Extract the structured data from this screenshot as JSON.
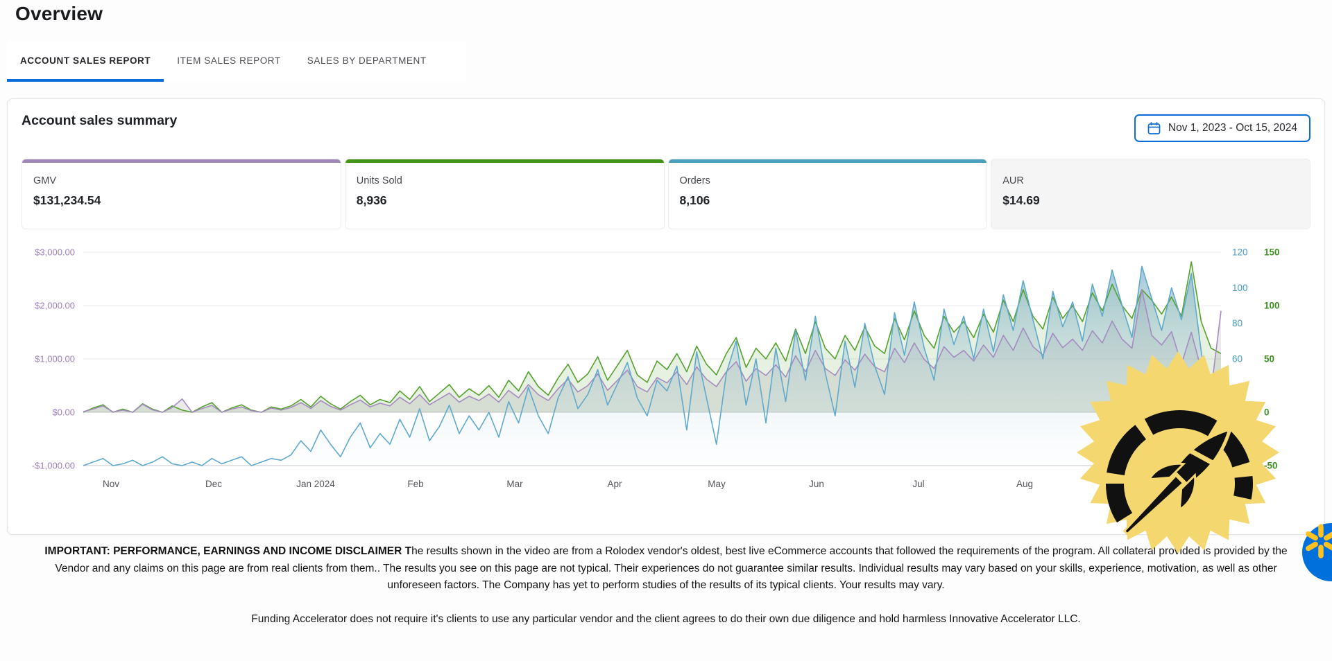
{
  "page": {
    "title": "Overview"
  },
  "tabs": [
    {
      "label": "ACCOUNT SALES REPORT",
      "active": true
    },
    {
      "label": "ITEM SALES REPORT",
      "active": false
    },
    {
      "label": "SALES BY DEPARTMENT",
      "active": false
    }
  ],
  "card": {
    "title": "Account sales summary",
    "date_range": "Nov 1, 2023 - Oct 15, 2024"
  },
  "metrics": [
    {
      "label": "GMV",
      "value": "$131,234.54",
      "accent_color": "#a287b9",
      "selected": true
    },
    {
      "label": "Units Sold",
      "value": "8,936",
      "accent_color": "#449417",
      "selected": true
    },
    {
      "label": "Orders",
      "value": "8,106",
      "accent_color": "#4aa0bd",
      "selected": true
    },
    {
      "label": "AUR",
      "value": "$14.69",
      "accent_color": null,
      "selected": false
    }
  ],
  "chart_data": {
    "type": "area",
    "title": "Account sales summary",
    "grid": true,
    "x_tick_labels": [
      "Nov",
      "Dec",
      "Jan 2024",
      "Feb",
      "Mar",
      "Apr",
      "May",
      "Jun",
      "Jul",
      "Aug"
    ],
    "left_axis": {
      "name": "GMV ($)",
      "label_color": "#9d7fba",
      "ticks": [
        "$3,000.00",
        "$2,000.00",
        "$1,000.00",
        "$0.00",
        "-$1,000.00"
      ],
      "tick_values": [
        3000,
        2000,
        1000,
        0,
        -1000
      ],
      "min": -1000,
      "max": 3000
    },
    "right_axis_orders": {
      "name": "Orders",
      "label_color": "#459cc4",
      "ticks": [
        120,
        100,
        80,
        60
      ],
      "min": 0,
      "max": 120
    },
    "right_axis_units": {
      "name": "Units",
      "label_color": "#3f8f22",
      "ticks": [
        150,
        100,
        50,
        0,
        -50
      ],
      "min": -50,
      "max": 150
    },
    "series": [
      {
        "name": "GMV",
        "axis": "left",
        "color": "#a58bc0",
        "fill": "rgba(150,150,155,0.20)",
        "values": [
          10,
          60,
          120,
          5,
          40,
          0,
          150,
          45,
          0,
          90,
          250,
          0,
          70,
          130,
          0,
          60,
          100,
          30,
          0,
          80,
          40,
          90,
          180,
          70,
          220,
          110,
          40,
          140,
          230,
          100,
          170,
          120,
          280,
          160,
          330,
          140,
          250,
          360,
          190,
          300,
          220,
          340,
          190,
          410,
          270,
          520,
          330,
          220,
          440,
          620,
          380,
          500,
          720,
          410,
          600,
          790,
          480,
          380,
          650,
          550,
          760,
          520,
          850,
          620,
          480,
          760,
          950,
          580,
          820,
          690,
          890,
          660,
          1060,
          760,
          1160,
          820,
          690,
          980,
          790,
          1090,
          850,
          760,
          1200,
          930,
          1300,
          990,
          820,
          1230,
          1030,
          1160,
          960,
          1260,
          1030,
          1440,
          1160,
          1580,
          1230,
          1070,
          1480,
          1210,
          1370,
          1160,
          1530,
          1300,
          1710,
          1370,
          1200,
          2300,
          1440,
          1260,
          1510,
          900,
          1500,
          800,
          400,
          1900
        ]
      },
      {
        "name": "Units Sold",
        "axis": "units",
        "color": "#55a12f",
        "fill": "rgba(120,175,95,0.18)",
        "values": [
          0,
          4,
          7,
          0,
          3,
          0,
          8,
          3,
          0,
          6,
          2,
          0,
          5,
          9,
          0,
          4,
          7,
          2,
          0,
          5,
          3,
          6,
          12,
          5,
          15,
          8,
          3,
          10,
          16,
          7,
          12,
          9,
          20,
          12,
          24,
          10,
          18,
          26,
          14,
          22,
          16,
          25,
          14,
          30,
          20,
          38,
          24,
          16,
          32,
          45,
          28,
          36,
          52,
          30,
          44,
          58,
          35,
          28,
          48,
          40,
          55,
          38,
          62,
          45,
          35,
          55,
          70,
          42,
          60,
          50,
          65,
          48,
          78,
          55,
          85,
          60,
          50,
          72,
          58,
          80,
          62,
          55,
          88,
          68,
          95,
          72,
          60,
          90,
          75,
          85,
          70,
          92,
          75,
          105,
          85,
          115,
          90,
          78,
          108,
          88,
          100,
          85,
          112,
          95,
          120,
          100,
          88,
          115,
          105,
          92,
          108,
          90,
          141,
          85,
          60,
          55
        ]
      },
      {
        "name": "Orders",
        "axis": "orders",
        "color": "#5fa9cd",
        "fill": "gradient-blue",
        "values": [
          0,
          2,
          4,
          0,
          1,
          3,
          0,
          2,
          5,
          1,
          0,
          2,
          0,
          4,
          1,
          3,
          5,
          0,
          2,
          4,
          3,
          6,
          14,
          8,
          20,
          12,
          5,
          16,
          24,
          10,
          18,
          12,
          26,
          16,
          32,
          14,
          22,
          34,
          18,
          28,
          20,
          30,
          16,
          36,
          24,
          44,
          28,
          18,
          38,
          50,
          32,
          40,
          54,
          34,
          46,
          58,
          38,
          28,
          48,
          42,
          56,
          20,
          64,
          38,
          12,
          52,
          70,
          34,
          60,
          24,
          66,
          36,
          76,
          48,
          84,
          52,
          28,
          70,
          44,
          80,
          56,
          40,
          86,
          62,
          92,
          66,
          48,
          88,
          68,
          84,
          60,
          88,
          64,
          96,
          76,
          104,
          82,
          60,
          98,
          78,
          92,
          70,
          102,
          84,
          110,
          90,
          72,
          112,
          94,
          76,
          100,
          82,
          108,
          64,
          30,
          18
        ]
      }
    ]
  },
  "badge": {
    "name": "rocket-gauge-seal",
    "color": "#f5d76f",
    "icon_color": "#111111"
  },
  "chat_button": {
    "name": "walmart-spark",
    "circle_color": "#0071dc",
    "spark_color": "#ffc220"
  },
  "disclaimer": {
    "bold_lead": "IMPORTANT: PERFORMANCE, EARNINGS AND INCOME DISCLAIMER T",
    "body": "he results shown in the video are from a Rolodex vendor's oldest, best live eCommerce accounts that followed the requirements of the program. All collateral provided is provided by the Vendor and any claims on this page are from real clients from them.. The results you see on this page are not typical. Their experiences do not guarantee similar results. Individual results may vary based on your skills, experience, motivation, as well as other unforeseen factors. The Company has yet to perform studies of the results of its typical clients. Your results may vary.",
    "footer": "Funding Accelerator does not require it's clients to use any particular vendor and the client agrees to do their own due diligence and hold harmless Innovative Accelerator LLC."
  }
}
